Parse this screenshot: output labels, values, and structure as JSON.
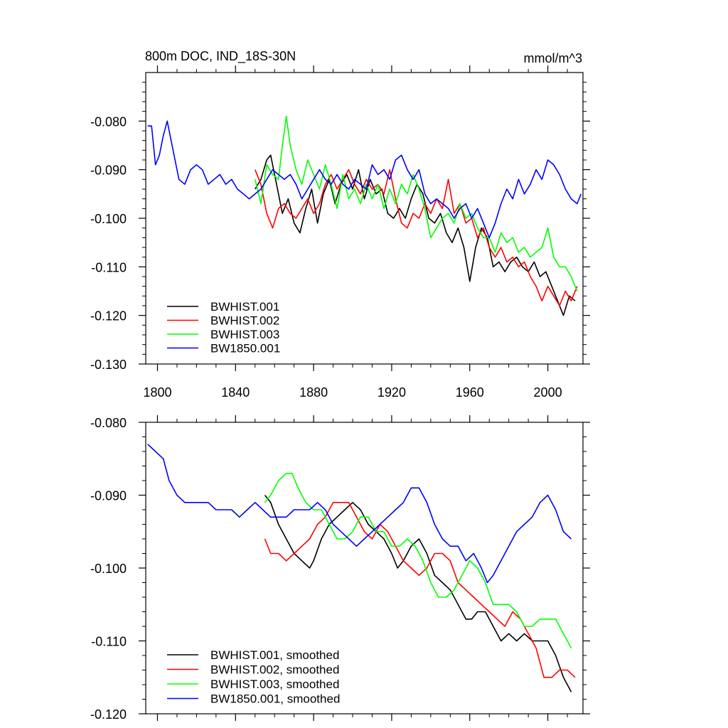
{
  "chart_data": [
    {
      "type": "line",
      "title_left": "800m DOC, IND_18S-30N",
      "title_right": "mmol/m^3",
      "xlim": [
        1794,
        2018
      ],
      "ylim": [
        -0.13,
        -0.07
      ],
      "xticks": [
        1800,
        1840,
        1880,
        1920,
        1960,
        2000
      ],
      "xtick_labels": [
        "1800",
        "1840",
        "1880",
        "1920",
        "1960",
        "2000"
      ],
      "yticks": [
        -0.08,
        -0.09,
        -0.1,
        -0.11,
        -0.12,
        -0.13
      ],
      "ytick_labels": [
        "-0.080",
        "-0.090",
        "-0.100",
        "-0.110",
        "-0.120",
        "-0.130"
      ],
      "legend_position": "bottom-left",
      "grid": false,
      "series": [
        {
          "name": "BWHIST.001",
          "color": "#000000",
          "x": [
            1850,
            1853,
            1856,
            1858,
            1861,
            1864,
            1867,
            1870,
            1873,
            1876,
            1879,
            1882,
            1885,
            1888,
            1891,
            1894,
            1897,
            1900,
            1903,
            1906,
            1909,
            1912,
            1915,
            1918,
            1921,
            1924,
            1927,
            1930,
            1933,
            1936,
            1939,
            1942,
            1945,
            1948,
            1951,
            1954,
            1957,
            1960,
            1963,
            1966,
            1969,
            1972,
            1975,
            1978,
            1981,
            1984,
            1987,
            1990,
            1993,
            1996,
            1999,
            2002,
            2005,
            2008,
            2011,
            2014
          ],
          "y": [
            -0.094,
            -0.092,
            -0.088,
            -0.087,
            -0.093,
            -0.099,
            -0.096,
            -0.101,
            -0.103,
            -0.098,
            -0.094,
            -0.101,
            -0.095,
            -0.092,
            -0.097,
            -0.093,
            -0.091,
            -0.094,
            -0.09,
            -0.096,
            -0.092,
            -0.095,
            -0.094,
            -0.099,
            -0.1,
            -0.098,
            -0.1,
            -0.096,
            -0.093,
            -0.095,
            -0.1,
            -0.101,
            -0.099,
            -0.103,
            -0.105,
            -0.102,
            -0.106,
            -0.113,
            -0.106,
            -0.102,
            -0.104,
            -0.11,
            -0.109,
            -0.111,
            -0.109,
            -0.108,
            -0.11,
            -0.111,
            -0.109,
            -0.112,
            -0.111,
            -0.114,
            -0.117,
            -0.12,
            -0.116,
            -0.117
          ]
        },
        {
          "name": "BWHIST.002",
          "color": "#ff0000",
          "x": [
            1850,
            1853,
            1856,
            1859,
            1862,
            1865,
            1868,
            1871,
            1874,
            1877,
            1880,
            1883,
            1886,
            1889,
            1892,
            1895,
            1898,
            1901,
            1904,
            1907,
            1910,
            1913,
            1916,
            1919,
            1922,
            1925,
            1928,
            1931,
            1934,
            1937,
            1940,
            1943,
            1946,
            1949,
            1952,
            1955,
            1958,
            1961,
            1964,
            1967,
            1970,
            1973,
            1976,
            1979,
            1982,
            1985,
            1988,
            1991,
            1994,
            1997,
            2000,
            2003,
            2006,
            2009,
            2012,
            2015
          ],
          "y": [
            -0.09,
            -0.093,
            -0.099,
            -0.102,
            -0.098,
            -0.097,
            -0.099,
            -0.1,
            -0.098,
            -0.096,
            -0.099,
            -0.097,
            -0.093,
            -0.091,
            -0.094,
            -0.092,
            -0.09,
            -0.093,
            -0.095,
            -0.092,
            -0.094,
            -0.093,
            -0.095,
            -0.09,
            -0.096,
            -0.101,
            -0.102,
            -0.099,
            -0.1,
            -0.097,
            -0.099,
            -0.096,
            -0.098,
            -0.092,
            -0.099,
            -0.097,
            -0.101,
            -0.1,
            -0.104,
            -0.102,
            -0.106,
            -0.108,
            -0.106,
            -0.109,
            -0.108,
            -0.11,
            -0.109,
            -0.112,
            -0.114,
            -0.117,
            -0.114,
            -0.116,
            -0.118,
            -0.115,
            -0.117,
            -0.114
          ]
        },
        {
          "name": "BWHIST.003",
          "color": "#00ff00",
          "x": [
            1850,
            1853,
            1856,
            1859,
            1862,
            1864,
            1866,
            1868,
            1871,
            1874,
            1877,
            1880,
            1883,
            1886,
            1889,
            1892,
            1895,
            1898,
            1901,
            1904,
            1907,
            1910,
            1913,
            1916,
            1919,
            1922,
            1925,
            1928,
            1931,
            1934,
            1937,
            1940,
            1943,
            1946,
            1949,
            1952,
            1955,
            1958,
            1961,
            1964,
            1967,
            1970,
            1973,
            1976,
            1979,
            1982,
            1985,
            1988,
            1991,
            1994,
            1997,
            2000,
            2003,
            2006,
            2009,
            2012,
            2015
          ],
          "y": [
            -0.092,
            -0.097,
            -0.089,
            -0.091,
            -0.092,
            -0.085,
            -0.079,
            -0.085,
            -0.09,
            -0.093,
            -0.088,
            -0.091,
            -0.094,
            -0.089,
            -0.093,
            -0.098,
            -0.091,
            -0.096,
            -0.094,
            -0.097,
            -0.093,
            -0.096,
            -0.093,
            -0.098,
            -0.094,
            -0.097,
            -0.093,
            -0.095,
            -0.091,
            -0.094,
            -0.098,
            -0.104,
            -0.102,
            -0.1,
            -0.099,
            -0.101,
            -0.097,
            -0.1,
            -0.099,
            -0.102,
            -0.104,
            -0.104,
            -0.107,
            -0.103,
            -0.105,
            -0.104,
            -0.107,
            -0.106,
            -0.108,
            -0.107,
            -0.106,
            -0.102,
            -0.108,
            -0.11,
            -0.11,
            -0.112,
            -0.115
          ]
        },
        {
          "name": "BW1850.001",
          "color": "#0000ff",
          "x": [
            1795,
            1797,
            1799,
            1801,
            1803,
            1805,
            1807,
            1809,
            1811,
            1814,
            1817,
            1820,
            1823,
            1826,
            1829,
            1832,
            1835,
            1838,
            1841,
            1844,
            1847,
            1850,
            1853,
            1856,
            1859,
            1862,
            1865,
            1868,
            1871,
            1874,
            1877,
            1880,
            1883,
            1886,
            1889,
            1892,
            1895,
            1898,
            1901,
            1904,
            1907,
            1910,
            1913,
            1916,
            1919,
            1922,
            1925,
            1928,
            1931,
            1934,
            1937,
            1940,
            1943,
            1946,
            1949,
            1952,
            1955,
            1958,
            1961,
            1964,
            1967,
            1970,
            1973,
            1976,
            1979,
            1982,
            1985,
            1988,
            1991,
            1994,
            1997,
            2000,
            2003,
            2006,
            2009,
            2012,
            2015,
            2017
          ],
          "y": [
            -0.081,
            -0.081,
            -0.089,
            -0.087,
            -0.083,
            -0.08,
            -0.084,
            -0.088,
            -0.092,
            -0.093,
            -0.09,
            -0.089,
            -0.09,
            -0.093,
            -0.092,
            -0.091,
            -0.093,
            -0.092,
            -0.094,
            -0.095,
            -0.096,
            -0.095,
            -0.094,
            -0.092,
            -0.09,
            -0.091,
            -0.092,
            -0.091,
            -0.093,
            -0.096,
            -0.094,
            -0.092,
            -0.09,
            -0.092,
            -0.093,
            -0.091,
            -0.093,
            -0.094,
            -0.092,
            -0.093,
            -0.094,
            -0.089,
            -0.091,
            -0.09,
            -0.092,
            -0.088,
            -0.087,
            -0.09,
            -0.092,
            -0.09,
            -0.095,
            -0.097,
            -0.096,
            -0.097,
            -0.098,
            -0.1,
            -0.098,
            -0.097,
            -0.1,
            -0.098,
            -0.101,
            -0.104,
            -0.101,
            -0.097,
            -0.094,
            -0.096,
            -0.092,
            -0.095,
            -0.093,
            -0.09,
            -0.092,
            -0.088,
            -0.089,
            -0.091,
            -0.094,
            -0.096,
            -0.097,
            -0.095
          ]
        }
      ]
    },
    {
      "type": "line",
      "xlim": [
        1794,
        2018
      ],
      "ylim": [
        -0.12,
        -0.08
      ],
      "xticks": [
        1800,
        1840,
        1880,
        1920,
        1960,
        2000
      ],
      "yticks": [
        -0.08,
        -0.09,
        -0.1,
        -0.11,
        -0.12
      ],
      "ytick_labels": [
        "-0.080",
        "-0.090",
        "-0.100",
        "-0.110",
        "-0.120"
      ],
      "legend_position": "bottom-left",
      "grid": false,
      "series": [
        {
          "name": "BWHIST.001, smoothed",
          "color": "#000000",
          "x": [
            1855,
            1858,
            1862,
            1866,
            1870,
            1874,
            1878,
            1880,
            1884,
            1888,
            1892,
            1896,
            1900,
            1904,
            1908,
            1912,
            1916,
            1920,
            1923,
            1926,
            1930,
            1934,
            1938,
            1942,
            1946,
            1950,
            1954,
            1958,
            1961,
            1964,
            1968,
            1972,
            1976,
            1980,
            1984,
            1988,
            1992,
            1996,
            2000,
            2004,
            2008,
            2012
          ],
          "y": [
            -0.09,
            -0.091,
            -0.094,
            -0.096,
            -0.098,
            -0.099,
            -0.1,
            -0.099,
            -0.096,
            -0.094,
            -0.093,
            -0.092,
            -0.091,
            -0.092,
            -0.094,
            -0.095,
            -0.096,
            -0.098,
            -0.1,
            -0.099,
            -0.097,
            -0.096,
            -0.098,
            -0.101,
            -0.102,
            -0.103,
            -0.105,
            -0.107,
            -0.107,
            -0.106,
            -0.106,
            -0.108,
            -0.11,
            -0.109,
            -0.11,
            -0.109,
            -0.11,
            -0.11,
            -0.11,
            -0.112,
            -0.115,
            -0.117
          ]
        },
        {
          "name": "BWHIST.002, smoothed",
          "color": "#ff0000",
          "x": [
            1855,
            1858,
            1862,
            1866,
            1870,
            1874,
            1878,
            1882,
            1886,
            1890,
            1894,
            1898,
            1902,
            1906,
            1910,
            1914,
            1918,
            1922,
            1926,
            1930,
            1934,
            1938,
            1942,
            1946,
            1950,
            1954,
            1958,
            1962,
            1966,
            1970,
            1974,
            1978,
            1982,
            1986,
            1990,
            1994,
            1998,
            2002,
            2006,
            2010,
            2014
          ],
          "y": [
            -0.096,
            -0.098,
            -0.098,
            -0.099,
            -0.098,
            -0.097,
            -0.096,
            -0.094,
            -0.093,
            -0.091,
            -0.091,
            -0.091,
            -0.093,
            -0.095,
            -0.096,
            -0.094,
            -0.095,
            -0.097,
            -0.099,
            -0.1,
            -0.101,
            -0.1,
            -0.098,
            -0.098,
            -0.099,
            -0.102,
            -0.103,
            -0.104,
            -0.105,
            -0.106,
            -0.107,
            -0.108,
            -0.106,
            -0.107,
            -0.109,
            -0.111,
            -0.115,
            -0.115,
            -0.114,
            -0.114,
            -0.115
          ]
        },
        {
          "name": "BWHIST.003, smoothed",
          "color": "#00ff00",
          "x": [
            1855,
            1858,
            1862,
            1866,
            1869,
            1872,
            1876,
            1880,
            1884,
            1888,
            1892,
            1896,
            1900,
            1904,
            1908,
            1912,
            1916,
            1920,
            1924,
            1928,
            1932,
            1936,
            1940,
            1944,
            1948,
            1952,
            1956,
            1960,
            1964,
            1968,
            1972,
            1976,
            1980,
            1984,
            1988,
            1992,
            1996,
            2000,
            2004,
            2008,
            2012
          ],
          "y": [
            -0.091,
            -0.09,
            -0.088,
            -0.087,
            -0.087,
            -0.089,
            -0.091,
            -0.092,
            -0.092,
            -0.094,
            -0.096,
            -0.096,
            -0.095,
            -0.093,
            -0.093,
            -0.095,
            -0.095,
            -0.097,
            -0.097,
            -0.096,
            -0.097,
            -0.099,
            -0.102,
            -0.104,
            -0.104,
            -0.103,
            -0.101,
            -0.099,
            -0.1,
            -0.102,
            -0.105,
            -0.105,
            -0.105,
            -0.106,
            -0.108,
            -0.108,
            -0.107,
            -0.107,
            -0.107,
            -0.109,
            -0.111
          ]
        },
        {
          "name": "BW1850.001, smoothed",
          "color": "#0000ff",
          "x": [
            1795,
            1799,
            1803,
            1806,
            1810,
            1814,
            1818,
            1822,
            1826,
            1830,
            1834,
            1838,
            1842,
            1846,
            1850,
            1854,
            1858,
            1862,
            1866,
            1870,
            1874,
            1878,
            1882,
            1886,
            1890,
            1894,
            1898,
            1902,
            1906,
            1910,
            1914,
            1918,
            1922,
            1926,
            1930,
            1934,
            1938,
            1942,
            1946,
            1950,
            1954,
            1958,
            1962,
            1966,
            1969,
            1972,
            1976,
            1980,
            1984,
            1988,
            1992,
            1996,
            2000,
            2004,
            2008,
            2012
          ],
          "y": [
            -0.083,
            -0.084,
            -0.085,
            -0.088,
            -0.09,
            -0.091,
            -0.091,
            -0.091,
            -0.091,
            -0.092,
            -0.092,
            -0.092,
            -0.093,
            -0.092,
            -0.091,
            -0.092,
            -0.093,
            -0.093,
            -0.093,
            -0.092,
            -0.092,
            -0.092,
            -0.091,
            -0.092,
            -0.094,
            -0.095,
            -0.096,
            -0.097,
            -0.096,
            -0.095,
            -0.094,
            -0.093,
            -0.092,
            -0.091,
            -0.089,
            -0.089,
            -0.091,
            -0.094,
            -0.096,
            -0.097,
            -0.097,
            -0.099,
            -0.098,
            -0.1,
            -0.102,
            -0.101,
            -0.099,
            -0.097,
            -0.095,
            -0.094,
            -0.093,
            -0.091,
            -0.09,
            -0.092,
            -0.095,
            -0.096
          ]
        }
      ]
    }
  ]
}
